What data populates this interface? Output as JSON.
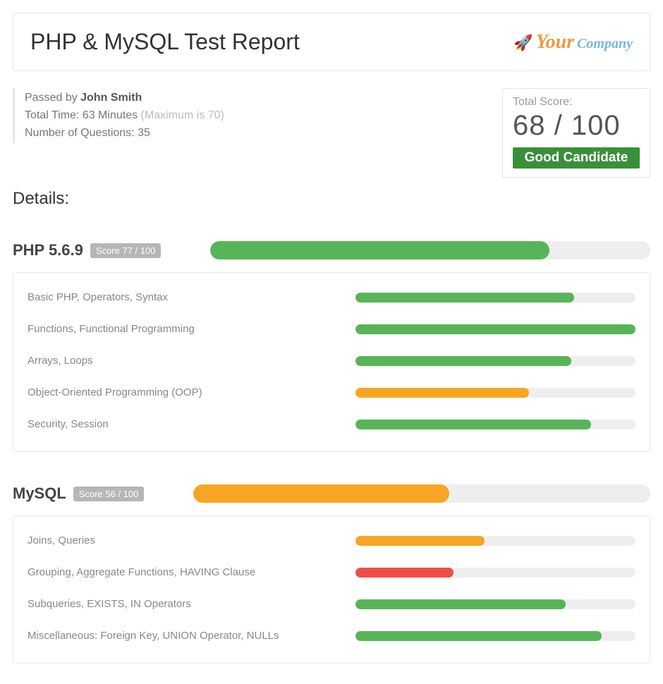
{
  "colors": {
    "green": "#57b557",
    "orange": "#f6a624",
    "red": "#ef4e47",
    "track": "#eeeeee",
    "pill": "#b6b6b6",
    "badge": "#3a8f3a"
  },
  "header": {
    "title": "PHP & MySQL Test Report",
    "logo_your": "Your",
    "logo_company": "Company",
    "logo_icon": "🚀"
  },
  "meta": {
    "passed_prefix": "Passed by ",
    "passed_name": "John Smith",
    "time_prefix": "Total Time: ",
    "time_value": "63 Minutes ",
    "time_max": "(Maximum is 70)",
    "questions_prefix": "Number of Questions: ",
    "questions_value": "35"
  },
  "total": {
    "label": "Total Score:",
    "value": "68 / 100",
    "badge": "Good Candidate"
  },
  "details_heading": "Details:",
  "sections": [
    {
      "title": "PHP 5.6.9",
      "pill": "Score 77 / 100",
      "pct": 77,
      "color": "#57b557",
      "items": [
        {
          "label": "Basic PHP, Operators, Syntax",
          "pct": 78,
          "color": "#57b557"
        },
        {
          "label": "Functions, Functional Programming",
          "pct": 100,
          "color": "#57b557"
        },
        {
          "label": "Arrays, Loops",
          "pct": 77,
          "color": "#57b557"
        },
        {
          "label": "Object-Oriented Programming (OOP)",
          "pct": 62,
          "color": "#f6a624"
        },
        {
          "label": "Security, Session",
          "pct": 84,
          "color": "#57b557"
        }
      ]
    },
    {
      "title": "MySQL",
      "pill": "Score 56 / 100",
      "pct": 56,
      "color": "#f6a624",
      "items": [
        {
          "label": "Joins, Queries",
          "pct": 46,
          "color": "#f6a624"
        },
        {
          "label": "Grouping, Aggregate Functions, HAVING Clause",
          "pct": 35,
          "color": "#ef4e47"
        },
        {
          "label": "Subqueries, EXISTS, IN Operators",
          "pct": 75,
          "color": "#57b557"
        },
        {
          "label": "Miscellaneous: Foreign Key, UNION Operator, NULLs",
          "pct": 88,
          "color": "#57b557"
        }
      ]
    }
  ]
}
